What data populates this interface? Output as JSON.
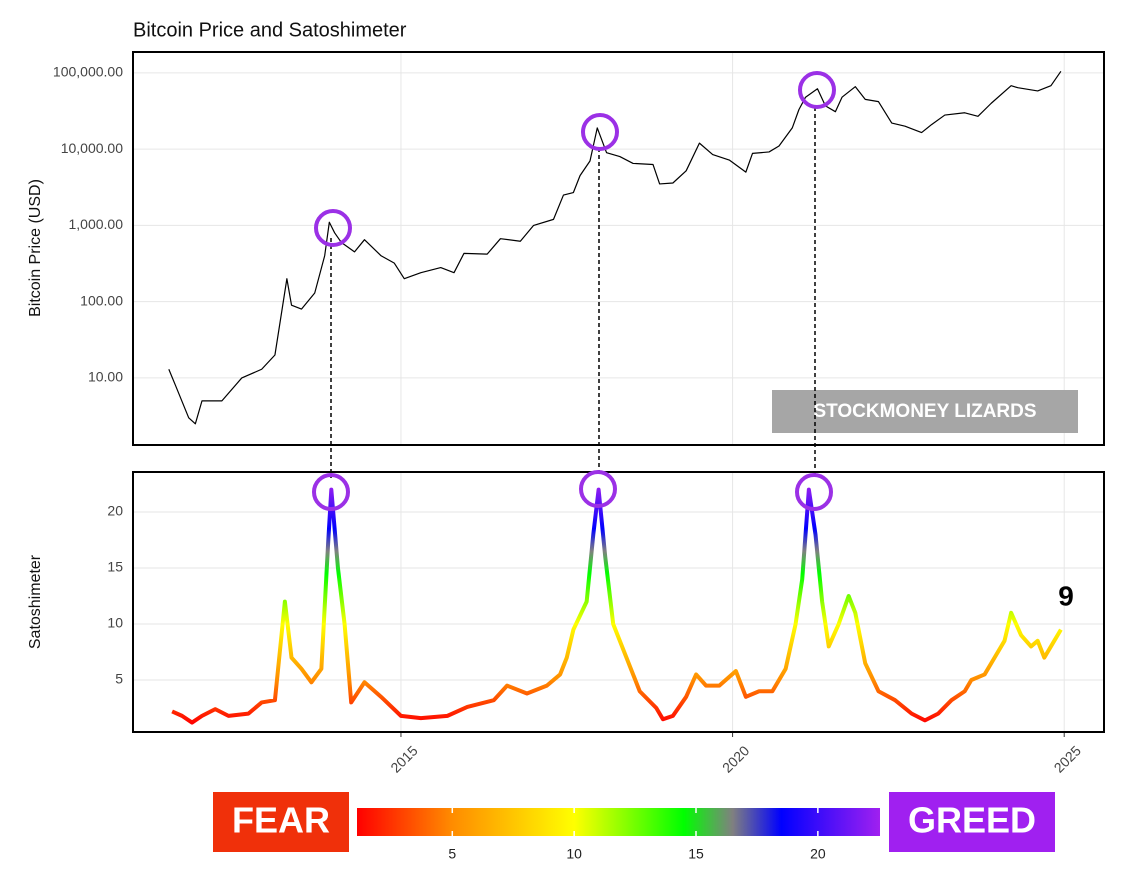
{
  "chart_data": [
    {
      "type": "line",
      "title": "Bitcoin Price and Satoshimeter",
      "ylabel": "Bitcoin Price (USD)",
      "log_y": true,
      "grid": true,
      "color": "#000000",
      "xlim": [
        2010.96,
        2025.6
      ],
      "ylim": [
        1.32,
        188000
      ],
      "yticks": [
        {
          "value": 10,
          "label": "10.00"
        },
        {
          "value": 100,
          "label": "100.00"
        },
        {
          "value": 1000,
          "label": "1,000.00"
        },
        {
          "value": 10000,
          "label": "10,000.00"
        },
        {
          "value": 100000,
          "label": "100,000.00"
        }
      ],
      "annotation": "STOCKMONEY LIZARDS",
      "x": [
        2011.5,
        2011.6,
        2011.8,
        2011.9,
        2012.0,
        2012.3,
        2012.6,
        2012.9,
        2013.1,
        2013.28,
        2013.35,
        2013.5,
        2013.7,
        2013.85,
        2013.92,
        2014.0,
        2014.1,
        2014.3,
        2014.45,
        2014.7,
        2014.9,
        2015.05,
        2015.3,
        2015.6,
        2015.8,
        2015.95,
        2016.3,
        2016.5,
        2016.8,
        2017.0,
        2017.3,
        2017.45,
        2017.6,
        2017.7,
        2017.85,
        2017.96,
        2018.1,
        2018.3,
        2018.5,
        2018.8,
        2018.9,
        2019.1,
        2019.3,
        2019.5,
        2019.7,
        2019.95,
        2020.2,
        2020.3,
        2020.55,
        2020.7,
        2020.9,
        2021.0,
        2021.1,
        2021.28,
        2021.4,
        2021.55,
        2021.65,
        2021.85,
        2022.0,
        2022.2,
        2022.4,
        2022.6,
        2022.85,
        2023.0,
        2023.2,
        2023.5,
        2023.7,
        2023.9,
        2024.2,
        2024.3,
        2024.6,
        2024.8,
        2024.95
      ],
      "values": [
        13,
        8,
        3,
        2.5,
        5,
        5,
        10,
        13,
        20,
        200,
        90,
        80,
        130,
        400,
        1100,
        800,
        600,
        450,
        650,
        400,
        320,
        200,
        240,
        280,
        240,
        430,
        420,
        670,
        620,
        1000,
        1200,
        2500,
        2700,
        4500,
        7000,
        19000,
        9000,
        8000,
        6500,
        6300,
        3500,
        3600,
        5200,
        12000,
        8500,
        7200,
        5000,
        8800,
        9200,
        11000,
        19000,
        33000,
        48000,
        62000,
        37000,
        31000,
        48000,
        66000,
        45000,
        42000,
        22000,
        20000,
        16500,
        21000,
        28000,
        30000,
        27000,
        40000,
        68000,
        64000,
        58000,
        68000,
        105000
      ]
    },
    {
      "type": "line",
      "ylabel": "Satoshimeter",
      "grid": true,
      "xlim": [
        2010.96,
        2025.6
      ],
      "ylim": [
        0.36,
        23.57
      ],
      "xticks": [
        2015,
        2020,
        2025
      ],
      "yticks": [
        5,
        10,
        15,
        20
      ],
      "annotation": "9",
      "x": [
        2011.55,
        2011.7,
        2011.85,
        2012.0,
        2012.2,
        2012.4,
        2012.7,
        2012.9,
        2013.1,
        2013.25,
        2013.35,
        2013.5,
        2013.65,
        2013.8,
        2013.9,
        2013.95,
        2014.05,
        2014.15,
        2014.25,
        2014.45,
        2014.7,
        2015.0,
        2015.3,
        2015.7,
        2016.0,
        2016.4,
        2016.6,
        2016.9,
        2017.2,
        2017.4,
        2017.5,
        2017.6,
        2017.8,
        2017.9,
        2017.98,
        2018.08,
        2018.2,
        2018.4,
        2018.6,
        2018.85,
        2018.95,
        2019.1,
        2019.3,
        2019.45,
        2019.6,
        2019.8,
        2020.05,
        2020.2,
        2020.4,
        2020.6,
        2020.8,
        2020.95,
        2021.05,
        2021.15,
        2021.25,
        2021.35,
        2021.45,
        2021.6,
        2021.75,
        2021.85,
        2022.0,
        2022.2,
        2022.45,
        2022.7,
        2022.9,
        2023.1,
        2023.3,
        2023.5,
        2023.6,
        2023.8,
        2023.95,
        2024.1,
        2024.2,
        2024.35,
        2024.5,
        2024.6,
        2024.7,
        2024.85,
        2024.95
      ],
      "values": [
        2.2,
        1.8,
        1.2,
        1.8,
        2.4,
        1.8,
        2.0,
        3.0,
        3.2,
        12,
        7,
        6,
        4.8,
        6,
        17,
        22,
        15,
        10,
        3,
        4.8,
        3.5,
        1.8,
        1.6,
        1.8,
        2.6,
        3.2,
        4.5,
        3.8,
        4.5,
        5.5,
        7,
        9.5,
        12,
        18,
        22,
        16,
        10,
        7,
        4,
        2.5,
        1.5,
        1.8,
        3.5,
        5.5,
        4.5,
        4.5,
        5.8,
        3.5,
        4,
        4,
        6,
        10,
        14,
        22,
        18,
        12,
        8,
        10,
        12.5,
        11,
        6.5,
        4,
        3.2,
        2,
        1.4,
        2,
        3.2,
        4,
        5,
        5.5,
        7,
        8.5,
        11,
        9,
        8,
        8.5,
        7,
        8.5,
        9.5
      ],
      "colorbar": {
        "low_label": "FEAR",
        "high_label": "GREED",
        "lim": [
          1.09,
          22.55
        ],
        "ticks": [
          5,
          10,
          15,
          20
        ],
        "stops": [
          1.09,
          5,
          10,
          14.5,
          16.5,
          18.5,
          22.55
        ],
        "colors": [
          "#ff0000",
          "#ff8c00",
          "#ffff00",
          "#00ff00",
          "#808080",
          "#0000ff",
          "#a020f0"
        ]
      }
    }
  ]
}
